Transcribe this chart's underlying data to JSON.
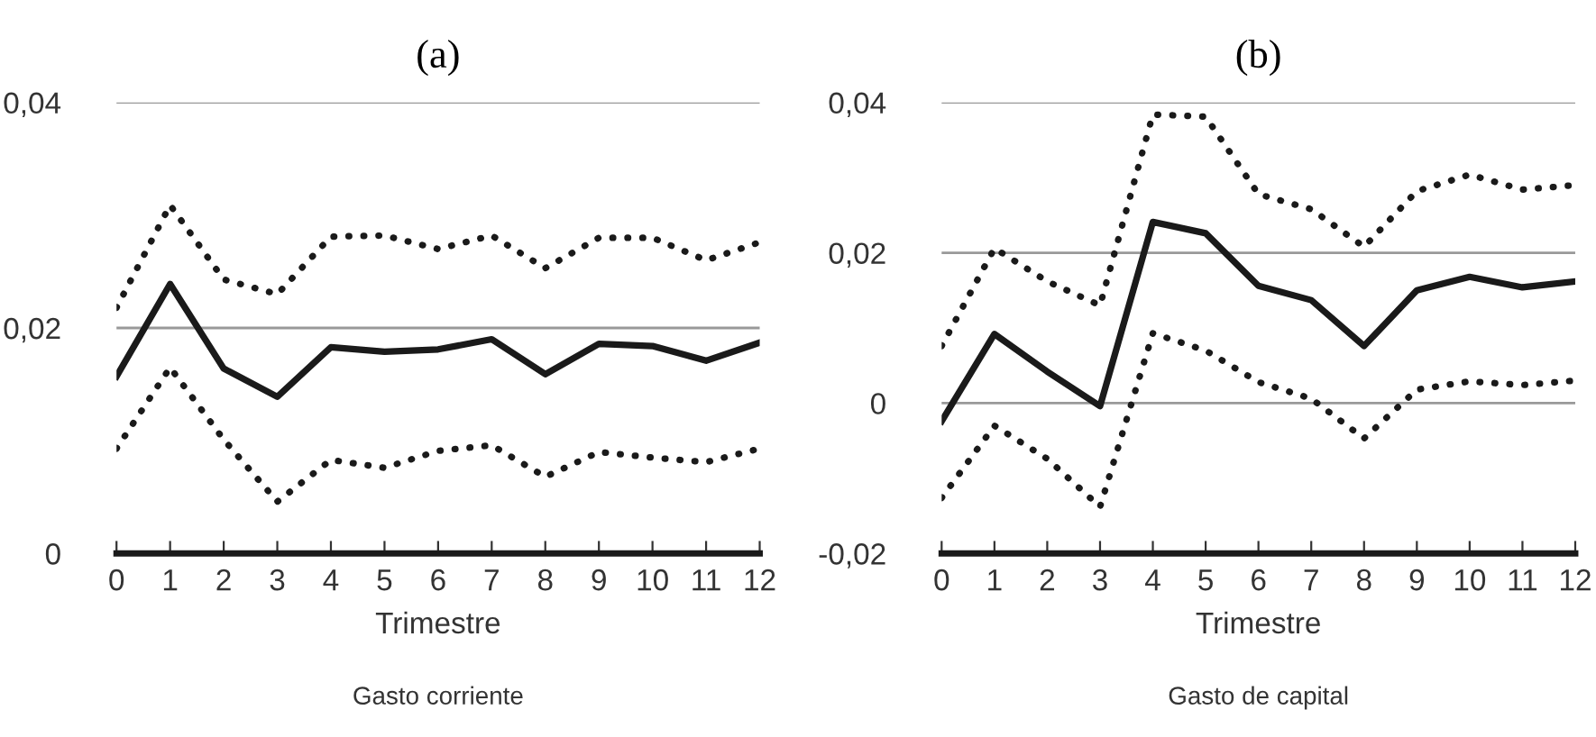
{
  "chart_data": [
    {
      "type": "line",
      "title": "(a)",
      "xlabel": "Trimestre",
      "annotations": [
        "Gasto corriente"
      ],
      "x": [
        0,
        1,
        2,
        3,
        4,
        5,
        6,
        7,
        8,
        9,
        10,
        11,
        12
      ],
      "xlim": [
        0,
        12
      ],
      "xticks": [
        0,
        1,
        2,
        3,
        4,
        5,
        6,
        7,
        8,
        9,
        10,
        11,
        12
      ],
      "ylim": [
        0,
        0.04
      ],
      "yticks": [
        {
          "value": 0,
          "label": "0"
        },
        {
          "value": 0.02,
          "label": "0,02"
        },
        {
          "value": 0.04,
          "label": "0,04"
        }
      ],
      "grid": "y",
      "series": [
        {
          "color": "#1a1a1a",
          "line_style": "solid",
          "values": [
            0.0157,
            0.0239,
            0.0164,
            0.0139,
            0.0183,
            0.0179,
            0.0181,
            0.019,
            0.0159,
            0.0186,
            0.0184,
            0.0171,
            0.0187
          ]
        },
        {
          "color": "#1a1a1a",
          "line_style": "dotted",
          "values": [
            0.0218,
            0.0309,
            0.0243,
            0.023,
            0.0281,
            0.0282,
            0.027,
            0.0282,
            0.0253,
            0.028,
            0.028,
            0.026,
            0.0276
          ]
        },
        {
          "color": "#1a1a1a",
          "line_style": "dotted",
          "values": [
            0.0093,
            0.0165,
            0.0101,
            0.0046,
            0.0083,
            0.0076,
            0.0091,
            0.0096,
            0.0068,
            0.009,
            0.0085,
            0.0081,
            0.0093
          ]
        }
      ]
    },
    {
      "type": "line",
      "title": "(b)",
      "xlabel": "Trimestre",
      "annotations": [
        "Gasto de capital"
      ],
      "x": [
        0,
        1,
        2,
        3,
        4,
        5,
        6,
        7,
        8,
        9,
        10,
        11,
        12
      ],
      "xlim": [
        0,
        12
      ],
      "xticks": [
        0,
        1,
        2,
        3,
        4,
        5,
        6,
        7,
        8,
        9,
        10,
        11,
        12
      ],
      "ylim": [
        -0.02,
        0.04
      ],
      "yticks": [
        {
          "value": -0.02,
          "label": "-0,02"
        },
        {
          "value": 0,
          "label": "0"
        },
        {
          "value": 0.02,
          "label": "0,02"
        },
        {
          "value": 0.04,
          "label": "0,04"
        }
      ],
      "grid": "y",
      "series": [
        {
          "color": "#1a1a1a",
          "line_style": "solid",
          "values": [
            -0.0024,
            0.0092,
            0.0042,
            -0.0004,
            0.0241,
            0.0226,
            0.0156,
            0.0137,
            0.0076,
            0.015,
            0.0168,
            0.0154,
            0.0162
          ]
        },
        {
          "color": "#1a1a1a",
          "line_style": "dotted",
          "values": [
            0.0076,
            0.0206,
            0.0162,
            0.013,
            0.0384,
            0.0381,
            0.0278,
            0.0258,
            0.0208,
            0.0282,
            0.0304,
            0.0284,
            0.029
          ]
        },
        {
          "color": "#1a1a1a",
          "line_style": "dotted",
          "values": [
            -0.0126,
            -0.003,
            -0.0074,
            -0.0138,
            0.0093,
            0.007,
            0.0028,
            0.0006,
            -0.0047,
            0.0018,
            0.0029,
            0.0024,
            0.003
          ]
        }
      ]
    }
  ]
}
